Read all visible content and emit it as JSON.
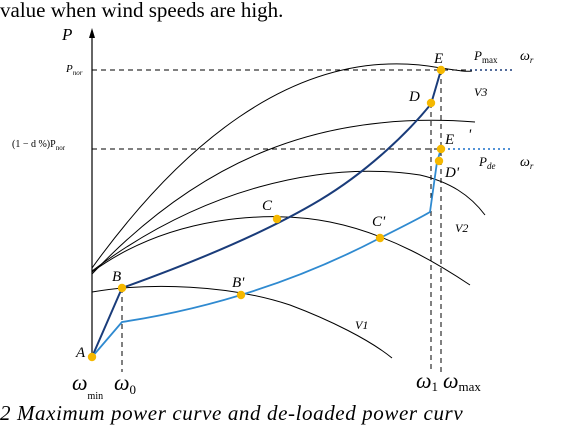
{
  "top_text": "value when wind speeds are high.",
  "caption": "2 Maximum power curve and de-loaded power curv",
  "axes": {
    "y_label": "P",
    "y_tick_pnor": "P",
    "y_tick_pnor_sub": "nor",
    "y_tick_deload": "(1 − d %)P",
    "y_tick_deload_sub": "nor"
  },
  "x_ticks": {
    "w_min": "ω",
    "w_min_sub": "min",
    "w0": "ω",
    "w0_sub": "0",
    "w1": "ω",
    "w1_sub": "1",
    "wmax": "ω",
    "wmax_sub": "max"
  },
  "points": {
    "A": "A",
    "B": "B",
    "B_prime": "B'",
    "C": "C",
    "C_prime": "C'",
    "D": "D",
    "D_prime": "D'",
    "E": "E",
    "E_prime": "E"
  },
  "right_labels": {
    "pmax": "P",
    "pmax_sub": "max",
    "omega_r_top": "ω",
    "omega_r_top_sub": "r",
    "pde": "P",
    "pde_sub": "de",
    "omega_r_mid": "ω",
    "omega_r_mid_sub": "r",
    "tick_mark": "'"
  },
  "curve_labels": {
    "v3": "V3",
    "v2": "V2",
    "v1": "V1"
  },
  "colors": {
    "max_curve": "#1a3c7a",
    "deload_curve": "#2f8ad0",
    "points": "#f5b800",
    "axes": "#000000"
  }
}
